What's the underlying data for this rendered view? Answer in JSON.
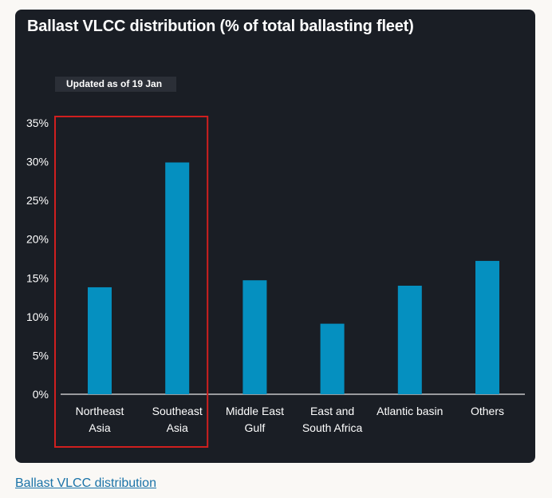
{
  "chart_data": {
    "type": "bar",
    "title": "Ballast VLCC distribution (% of total ballasting fleet)",
    "subtitle": "Updated as of 19 Jan",
    "categories": [
      [
        "Northeast",
        "Asia"
      ],
      [
        "Southeast",
        "Asia"
      ],
      [
        "Middle East",
        "Gulf"
      ],
      [
        "East and",
        "South Africa"
      ],
      [
        "Atlantic basin"
      ],
      [
        "Others"
      ]
    ],
    "values": [
      13.8,
      29.9,
      14.7,
      9.1,
      14.0,
      17.2
    ],
    "yticks": [
      "0%",
      "5%",
      "10%",
      "15%",
      "20%",
      "25%",
      "30%",
      "35%"
    ],
    "ylim": [
      0,
      35
    ],
    "xlabel": "",
    "ylabel": "",
    "grid": false,
    "highlight": {
      "categories": [
        0,
        1
      ],
      "color": "#d01f1f"
    },
    "bar_color": "#0590c0"
  },
  "caption": {
    "link_text": "Ballast VLCC distribution"
  }
}
